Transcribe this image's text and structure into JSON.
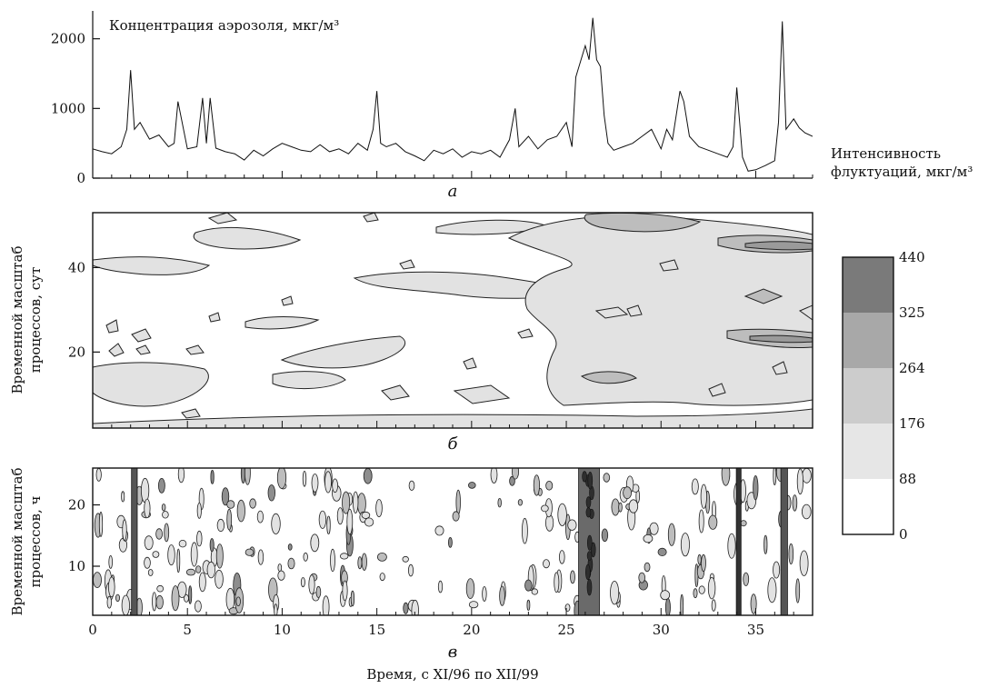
{
  "panels": {
    "a": {
      "letter": "а"
    },
    "b": {
      "letter": "б"
    },
    "v": {
      "letter": "в"
    }
  },
  "colorbar": {
    "levels": [
      0,
      88,
      176,
      264,
      325,
      440
    ],
    "labels": [
      "0",
      "88",
      "176",
      "264",
      "325",
      "440"
    ],
    "shades": [
      "#ffffff",
      "#e6e6e6",
      "#cccccc",
      "#a8a8a8",
      "#7a7a7a",
      "#4a4a4a"
    ]
  },
  "chart_data": [
    {
      "panel": "а",
      "type": "line",
      "title": "Концентрация аэрозоля, мкг/м³",
      "ylabel": "",
      "right_label": [
        "Интенсивность",
        "флуктуаций, мкг/м³"
      ],
      "xlim": [
        0,
        38
      ],
      "ylim": [
        0,
        2400
      ],
      "yticks": [
        0,
        1000,
        2000
      ],
      "ytick_labels": [
        "0",
        "1000",
        "2000"
      ],
      "series": [
        {
          "x": [
            0,
            0.5,
            1,
            1.5,
            1.8,
            2,
            2.2,
            2.5,
            3,
            3.5,
            4,
            4.3,
            4.5,
            5,
            5.5,
            5.8,
            6,
            6.2,
            6.5,
            7,
            7.5,
            8,
            8.5,
            9,
            9.5,
            10,
            10.5,
            11,
            11.5,
            12,
            12.5,
            13,
            13.5,
            14,
            14.5,
            14.8,
            15,
            15.2,
            15.5,
            16,
            16.5,
            17,
            17.5,
            18,
            18.5,
            19,
            19.5,
            20,
            20.5,
            21,
            21.5,
            22,
            22.3,
            22.5,
            23,
            23.5,
            24,
            24.5,
            25,
            25.3,
            25.5,
            26,
            26.2,
            26.4,
            26.6,
            26.8,
            27,
            27.2,
            27.5,
            28,
            28.5,
            29,
            29.5,
            30,
            30.3,
            30.6,
            31,
            31.2,
            31.5,
            32,
            32.5,
            33,
            33.5,
            33.8,
            34,
            34.3,
            34.6,
            35,
            35.5,
            36,
            36.2,
            36.4,
            36.6,
            37,
            37.3,
            37.6,
            38
          ],
          "y": [
            420,
            380,
            350,
            450,
            700,
            1550,
            700,
            800,
            560,
            620,
            450,
            500,
            1100,
            420,
            450,
            1150,
            500,
            1150,
            430,
            380,
            350,
            260,
            400,
            320,
            420,
            500,
            450,
            400,
            380,
            480,
            380,
            420,
            350,
            500,
            400,
            700,
            1250,
            500,
            450,
            500,
            380,
            320,
            250,
            400,
            350,
            420,
            300,
            380,
            350,
            400,
            300,
            550,
            1000,
            450,
            600,
            420,
            550,
            600,
            800,
            450,
            1450,
            1900,
            1700,
            2300,
            1700,
            1600,
            900,
            500,
            400,
            450,
            500,
            600,
            700,
            420,
            700,
            550,
            1250,
            1100,
            600,
            450,
            400,
            350,
            300,
            450,
            1300,
            300,
            100,
            120,
            180,
            250,
            800,
            2250,
            700,
            850,
            720,
            650,
            600
          ]
        }
      ]
    },
    {
      "panel": "б",
      "type": "heatmap",
      "ylabel": [
        "Временной масштаб",
        "процессов, сут"
      ],
      "xlim": [
        0,
        38
      ],
      "ylim": [
        2,
        53
      ],
      "yticks": [
        20,
        40
      ],
      "ytick_labels": [
        "20",
        "40"
      ]
    },
    {
      "panel": "в",
      "type": "heatmap",
      "ylabel": [
        "Временной масштаб",
        "процессов, ч"
      ],
      "xlabel": "Время, с XI/96 по XII/99",
      "xlim": [
        0,
        38
      ],
      "ylim": [
        2,
        26
      ],
      "xticks": [
        0,
        5,
        10,
        15,
        20,
        25,
        30,
        35
      ],
      "xtick_labels": [
        "0",
        "5",
        "10",
        "15",
        "20",
        "25",
        "30",
        "35"
      ],
      "yticks": [
        10,
        20
      ],
      "ytick_labels": [
        "10",
        "20"
      ]
    }
  ]
}
